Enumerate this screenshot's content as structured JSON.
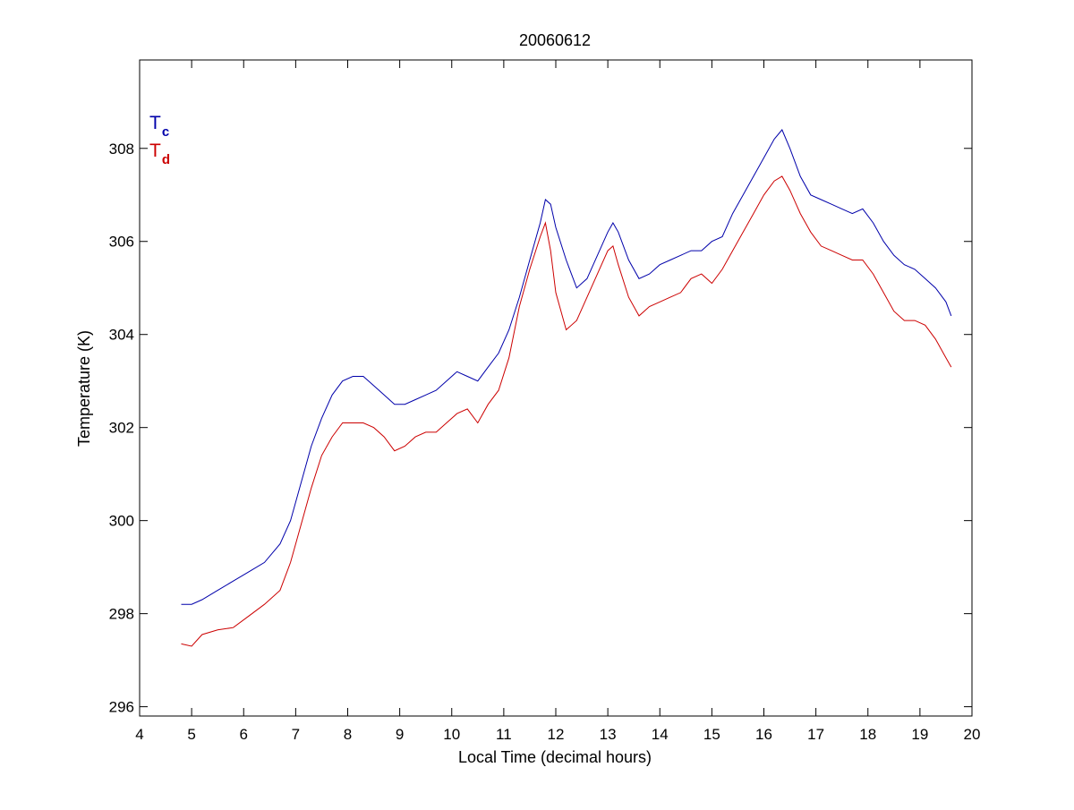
{
  "chart_data": {
    "type": "line",
    "title": "20060612",
    "xlabel": "Local Time (decimal hours)",
    "ylabel": "Temperature (K)",
    "xlim": [
      4,
      20
    ],
    "ylim": [
      295.8,
      309.9
    ],
    "xticks": [
      4,
      5,
      6,
      7,
      8,
      9,
      10,
      11,
      12,
      13,
      14,
      15,
      16,
      17,
      18,
      19,
      20
    ],
    "yticks": [
      296,
      298,
      300,
      302,
      304,
      306,
      308
    ],
    "grid": false,
    "legend_position": "top-left",
    "series": [
      {
        "name": "Tc",
        "legend_main": "T",
        "legend_sub": "c",
        "color": "#0000aa",
        "x": [
          4.8,
          5.0,
          5.2,
          5.5,
          5.8,
          6.1,
          6.4,
          6.7,
          6.9,
          7.1,
          7.3,
          7.5,
          7.7,
          7.9,
          8.1,
          8.3,
          8.5,
          8.7,
          8.9,
          9.1,
          9.3,
          9.5,
          9.7,
          9.9,
          10.1,
          10.3,
          10.5,
          10.7,
          10.9,
          11.1,
          11.3,
          11.5,
          11.7,
          11.8,
          11.9,
          12.0,
          12.2,
          12.4,
          12.6,
          12.8,
          13.0,
          13.1,
          13.2,
          13.4,
          13.6,
          13.8,
          14.0,
          14.2,
          14.4,
          14.6,
          14.8,
          15.0,
          15.2,
          15.4,
          15.6,
          15.8,
          16.0,
          16.2,
          16.35,
          16.5,
          16.7,
          16.9,
          17.1,
          17.3,
          17.5,
          17.7,
          17.9,
          18.1,
          18.3,
          18.5,
          18.7,
          18.9,
          19.1,
          19.3,
          19.5,
          19.6
        ],
        "y": [
          298.2,
          298.2,
          298.3,
          298.5,
          298.7,
          298.9,
          299.1,
          299.5,
          300.0,
          300.8,
          301.6,
          302.2,
          302.7,
          303.0,
          303.1,
          303.1,
          302.9,
          302.7,
          302.5,
          302.5,
          302.6,
          302.7,
          302.8,
          303.0,
          303.2,
          303.1,
          303.0,
          303.3,
          303.6,
          304.1,
          304.8,
          305.6,
          306.4,
          306.9,
          306.8,
          306.3,
          305.6,
          305.0,
          305.2,
          305.7,
          306.2,
          306.4,
          306.2,
          305.6,
          305.2,
          305.3,
          305.5,
          305.6,
          305.7,
          305.8,
          305.8,
          306.0,
          306.1,
          306.6,
          307.0,
          307.4,
          307.8,
          308.2,
          308.4,
          308.0,
          307.4,
          307.0,
          306.9,
          306.8,
          306.7,
          306.6,
          306.7,
          306.4,
          306.0,
          305.7,
          305.5,
          305.4,
          305.2,
          305.0,
          304.7,
          304.4
        ]
      },
      {
        "name": "Td",
        "legend_main": "T",
        "legend_sub": "d",
        "color": "#cc0000",
        "x": [
          4.8,
          5.0,
          5.2,
          5.5,
          5.8,
          6.1,
          6.4,
          6.7,
          6.9,
          7.1,
          7.3,
          7.5,
          7.7,
          7.9,
          8.1,
          8.3,
          8.5,
          8.7,
          8.9,
          9.1,
          9.3,
          9.5,
          9.7,
          9.9,
          10.1,
          10.3,
          10.5,
          10.7,
          10.9,
          11.1,
          11.3,
          11.5,
          11.7,
          11.8,
          11.9,
          12.0,
          12.2,
          12.4,
          12.6,
          12.8,
          13.0,
          13.1,
          13.2,
          13.4,
          13.6,
          13.8,
          14.0,
          14.2,
          14.4,
          14.6,
          14.8,
          15.0,
          15.2,
          15.4,
          15.6,
          15.8,
          16.0,
          16.2,
          16.35,
          16.5,
          16.7,
          16.9,
          17.1,
          17.3,
          17.5,
          17.7,
          17.9,
          18.1,
          18.3,
          18.5,
          18.7,
          18.9,
          19.1,
          19.3,
          19.5,
          19.6
        ],
        "y": [
          297.35,
          297.3,
          297.55,
          297.65,
          297.7,
          297.95,
          298.2,
          298.5,
          299.1,
          299.9,
          300.7,
          301.4,
          301.8,
          302.1,
          302.1,
          302.1,
          302.0,
          301.8,
          301.5,
          301.6,
          301.8,
          301.9,
          301.9,
          302.1,
          302.3,
          302.4,
          302.1,
          302.5,
          302.8,
          303.5,
          304.6,
          305.4,
          306.1,
          306.4,
          305.8,
          304.9,
          304.1,
          304.3,
          304.8,
          305.3,
          305.8,
          305.9,
          305.5,
          304.8,
          304.4,
          304.6,
          304.7,
          304.8,
          304.9,
          305.2,
          305.3,
          305.1,
          305.4,
          305.8,
          306.2,
          306.6,
          307.0,
          307.3,
          307.4,
          307.1,
          306.6,
          306.2,
          305.9,
          305.8,
          305.7,
          305.6,
          305.6,
          305.3,
          304.9,
          304.5,
          304.3,
          304.3,
          304.2,
          303.9,
          303.5,
          303.3
        ]
      }
    ]
  }
}
